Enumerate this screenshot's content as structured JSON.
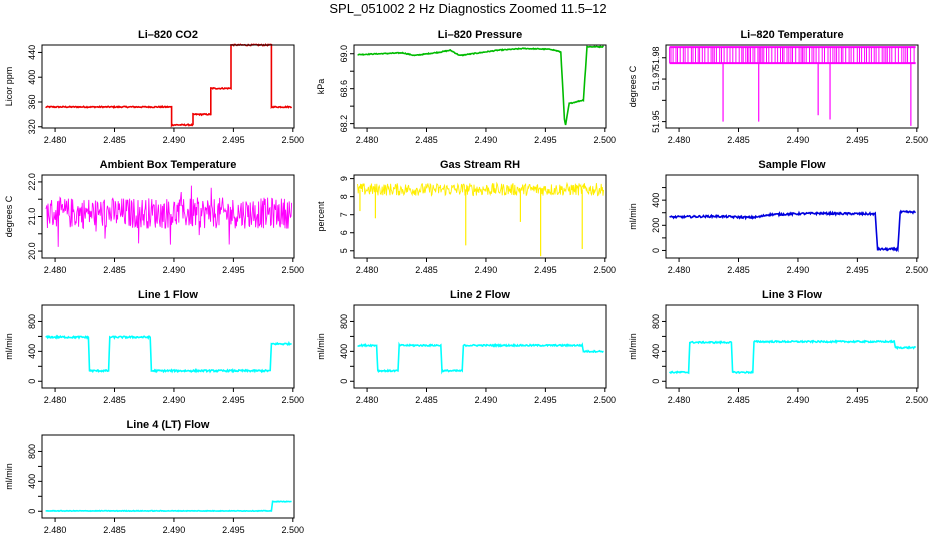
{
  "figure_title": "SPL_051002  2 Hz Diagnostics Zoomed 11.5–12",
  "chart_data": [
    {
      "id": "co2",
      "type": "line",
      "title": "Li–820 CO2",
      "ylabel": "Licor ppm",
      "color": "#ee0000",
      "xlim": [
        2.4789,
        2.5001
      ],
      "ylim": [
        318,
        452
      ],
      "x_ticks": [
        2.48,
        2.485,
        2.49,
        2.495,
        2.5
      ],
      "x_tick_labels": [
        "2.480",
        "2.485",
        "2.490",
        "2.495",
        "2.500"
      ],
      "y_ticks": [
        320,
        360,
        400,
        440
      ],
      "y_tick_labels": [
        "320",
        "360",
        "400",
        "440"
      ],
      "noise": 1.0,
      "series": {
        "x": [
          2.4792,
          2.4898,
          2.4898,
          2.4916,
          2.4916,
          2.4931,
          2.4931,
          2.4948,
          2.4948,
          2.4982,
          2.4982,
          2.4999
        ],
        "y": [
          352,
          352,
          323,
          323,
          340,
          340,
          382,
          382,
          452,
          452,
          352,
          352
        ]
      }
    },
    {
      "id": "pressure",
      "type": "line",
      "title": "Li–820 Pressure",
      "ylabel": "kPa",
      "color": "#00bb00",
      "xlim": [
        2.4789,
        2.5001
      ],
      "ylim": [
        68.15,
        69.1
      ],
      "x_ticks": [
        2.48,
        2.485,
        2.49,
        2.495,
        2.5
      ],
      "x_tick_labels": [
        "2.480",
        "2.485",
        "2.490",
        "2.495",
        "2.500"
      ],
      "y_ticks": [
        68.2,
        68.4,
        68.6,
        68.8,
        69.0
      ],
      "y_tick_labels": [
        "68.2",
        "",
        "68.6",
        "",
        "69.0"
      ],
      "noise": 0.005,
      "series": {
        "x": [
          2.4792,
          2.483,
          2.484,
          2.4862,
          2.487,
          2.4878,
          2.491,
          2.4932,
          2.4955,
          2.4963,
          2.4966,
          2.4967,
          2.497,
          2.4982,
          2.4985,
          2.4999
        ],
        "y": [
          68.99,
          69.01,
          68.98,
          69.02,
          69.04,
          68.98,
          69.04,
          69.06,
          69.05,
          69.02,
          68.25,
          68.18,
          68.43,
          68.47,
          69.08,
          69.08
        ]
      }
    },
    {
      "id": "li_temp",
      "type": "spikes",
      "title": "Li–820 Temperature",
      "ylabel": "degrees C",
      "color": "#ff00ff",
      "xlim": [
        2.4789,
        2.5001
      ],
      "ylim": [
        51.947,
        51.986
      ],
      "x_ticks": [
        2.48,
        2.485,
        2.49,
        2.495,
        2.5
      ],
      "x_tick_labels": [
        "2.480",
        "2.485",
        "2.490",
        "2.495",
        "2.500"
      ],
      "y_ticks": [
        51.95,
        51.96,
        51.97,
        51.98
      ],
      "y_tick_labels": [
        "51.95",
        "",
        "51.97",
        "51.98"
      ],
      "series": {
        "x_start": 2.4792,
        "x_end": 2.4999,
        "base": 51.9775,
        "high": 51.985,
        "deep_x": [
          2.4837,
          2.4867,
          2.4917,
          2.4927,
          2.4995
        ],
        "deep_y": [
          51.95,
          51.95,
          51.953,
          51.951,
          51.948
        ]
      }
    },
    {
      "id": "box_temp",
      "type": "noise",
      "title": "Ambient Box Temperature",
      "ylabel": "degrees C",
      "color": "#ff00ff",
      "xlim": [
        2.4789,
        2.5001
      ],
      "ylim": [
        19.8,
        22.2
      ],
      "x_ticks": [
        2.48,
        2.485,
        2.49,
        2.495,
        2.5
      ],
      "x_tick_labels": [
        "2.480",
        "2.485",
        "2.490",
        "2.495",
        "2.500"
      ],
      "y_ticks": [
        20.0,
        20.5,
        21.0,
        21.5,
        22.0
      ],
      "y_tick_labels": [
        "20.0",
        "",
        "21.0",
        "",
        "22.0"
      ],
      "series": {
        "x_start": 2.4792,
        "x_end": 2.4999,
        "mean": 21.1,
        "amp": 0.45,
        "spike_low": 20.1,
        "spike_high": 22.0
      }
    },
    {
      "id": "rh",
      "type": "noise",
      "title": "Gas Stream RH",
      "ylabel": "percent",
      "color": "#ffee00",
      "xlim": [
        2.4789,
        2.5001
      ],
      "ylim": [
        4.6,
        9.2
      ],
      "x_ticks": [
        2.48,
        2.485,
        2.49,
        2.495,
        2.5
      ],
      "x_tick_labels": [
        "2.480",
        "2.485",
        "2.490",
        "2.495",
        "2.500"
      ],
      "y_ticks": [
        5,
        6,
        7,
        8,
        9
      ],
      "y_tick_labels": [
        "5",
        "6",
        "7",
        "8",
        "9"
      ],
      "series": {
        "x_start": 2.4792,
        "x_end": 2.4999,
        "mean": 8.4,
        "amp": 0.35,
        "deep_x": [
          2.4794,
          2.4807,
          2.4883,
          2.4929,
          2.4946,
          2.4981
        ],
        "deep_y": [
          7.2,
          6.8,
          5.3,
          6.6,
          4.7,
          5.1
        ]
      }
    },
    {
      "id": "sample_flow",
      "type": "line",
      "title": "Sample Flow",
      "ylabel": "ml/min",
      "color": "#0000dd",
      "xlim": [
        2.4789,
        2.5001
      ],
      "ylim": [
        -60,
        600
      ],
      "x_ticks": [
        2.48,
        2.485,
        2.49,
        2.495,
        2.5
      ],
      "x_tick_labels": [
        "2.480",
        "2.485",
        "2.490",
        "2.495",
        "2.500"
      ],
      "y_ticks": [
        0,
        100,
        200,
        300,
        400,
        500
      ],
      "y_tick_labels": [
        "0",
        "",
        "200",
        "",
        "400",
        ""
      ],
      "noise": 8,
      "series": {
        "x": [
          2.4792,
          2.483,
          2.486,
          2.4868,
          2.4875,
          2.4915,
          2.4965,
          2.4967,
          2.4984,
          2.4986,
          2.4999
        ],
        "y": [
          265,
          272,
          262,
          268,
          285,
          295,
          290,
          10,
          10,
          305,
          305
        ]
      }
    },
    {
      "id": "line1",
      "type": "line",
      "title": "Line 1 Flow",
      "ylabel": "ml/min",
      "color": "#00ffff",
      "xlim": [
        2.4789,
        2.5001
      ],
      "ylim": [
        -90,
        1020
      ],
      "x_ticks": [
        2.48,
        2.485,
        2.49,
        2.495,
        2.5
      ],
      "x_tick_labels": [
        "2.480",
        "2.485",
        "2.490",
        "2.495",
        "2.500"
      ],
      "y_ticks": [
        0,
        200,
        400,
        600,
        800
      ],
      "y_tick_labels": [
        "0",
        "",
        "400",
        "",
        "800"
      ],
      "noise": 12,
      "series": {
        "x": [
          2.4792,
          2.4828,
          2.4829,
          2.4845,
          2.4846,
          2.488,
          2.4881,
          2.4981,
          2.4982,
          2.4999
        ],
        "y": [
          590,
          590,
          140,
          140,
          590,
          590,
          140,
          140,
          500,
          500
        ]
      }
    },
    {
      "id": "line2",
      "type": "line",
      "title": "Line 2 Flow",
      "ylabel": "ml/min",
      "color": "#00ffff",
      "xlim": [
        2.4789,
        2.5001
      ],
      "ylim": [
        -90,
        1020
      ],
      "x_ticks": [
        2.48,
        2.485,
        2.49,
        2.495,
        2.5
      ],
      "x_tick_labels": [
        "2.480",
        "2.485",
        "2.490",
        "2.495",
        "2.500"
      ],
      "y_ticks": [
        0,
        200,
        400,
        600,
        800
      ],
      "y_tick_labels": [
        "0",
        "",
        "400",
        "",
        "800"
      ],
      "noise": 10,
      "series": {
        "x": [
          2.4792,
          2.4808,
          2.4809,
          2.4826,
          2.4827,
          2.4862,
          2.4863,
          2.488,
          2.4881,
          2.4981,
          2.4982,
          2.4999
        ],
        "y": [
          480,
          480,
          140,
          140,
          480,
          480,
          140,
          140,
          480,
          480,
          400,
          400
        ]
      }
    },
    {
      "id": "line3",
      "type": "line",
      "title": "Line 3 Flow",
      "ylabel": "ml/min",
      "color": "#00ffff",
      "xlim": [
        2.4789,
        2.5001
      ],
      "ylim": [
        -90,
        1020
      ],
      "x_ticks": [
        2.48,
        2.485,
        2.49,
        2.495,
        2.5
      ],
      "x_tick_labels": [
        "2.480",
        "2.485",
        "2.490",
        "2.495",
        "2.500"
      ],
      "y_ticks": [
        0,
        200,
        400,
        600,
        800
      ],
      "y_tick_labels": [
        "0",
        "",
        "400",
        "",
        "800"
      ],
      "noise": 10,
      "series": {
        "x": [
          2.4792,
          2.4808,
          2.4809,
          2.4844,
          2.4845,
          2.4862,
          2.4863,
          2.4981,
          2.4982,
          2.4999
        ],
        "y": [
          120,
          120,
          520,
          520,
          120,
          120,
          530,
          530,
          450,
          450
        ]
      }
    },
    {
      "id": "line4",
      "type": "line",
      "title": "Line 4 (LT) Flow",
      "ylabel": "ml/min",
      "color": "#00ffff",
      "xlim": [
        2.4789,
        2.5001
      ],
      "ylim": [
        -90,
        1020
      ],
      "x_ticks": [
        2.48,
        2.485,
        2.49,
        2.495,
        2.5
      ],
      "x_tick_labels": [
        "2.480",
        "2.485",
        "2.490",
        "2.495",
        "2.500"
      ],
      "y_ticks": [
        0,
        200,
        400,
        600,
        800
      ],
      "y_tick_labels": [
        "0",
        "",
        "400",
        "",
        "800"
      ],
      "noise": 4,
      "series": {
        "x": [
          2.4792,
          2.4982,
          2.4983,
          2.4999
        ],
        "y": [
          5,
          5,
          130,
          130
        ]
      }
    }
  ]
}
